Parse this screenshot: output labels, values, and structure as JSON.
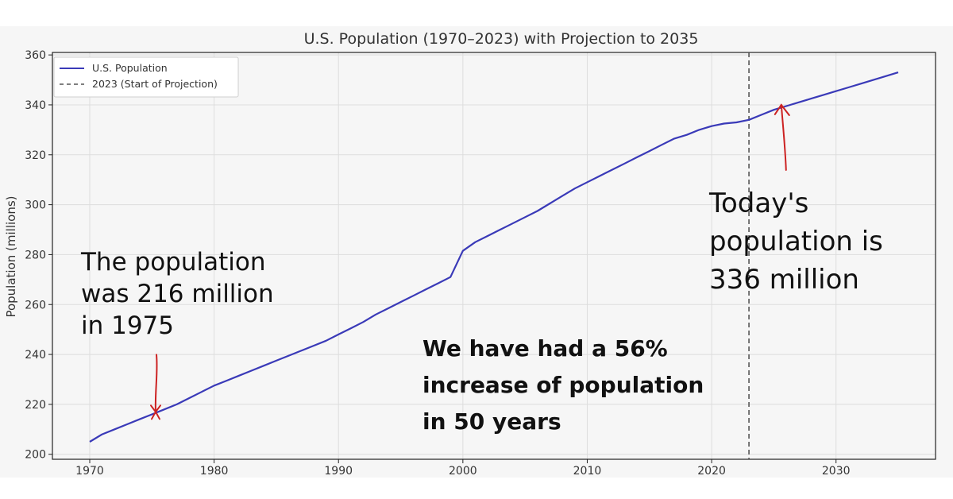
{
  "chart_data": {
    "type": "line",
    "title": "U.S. Population (1970–2023) with Projection to 2035",
    "xlabel": "",
    "ylabel": "Population (millions)",
    "xlim": [
      1967,
      2038
    ],
    "ylim": [
      198,
      361
    ],
    "xticks": [
      1970,
      1980,
      1990,
      2000,
      2010,
      2020,
      2030
    ],
    "yticks": [
      200,
      220,
      240,
      260,
      280,
      300,
      320,
      340,
      360
    ],
    "grid": true,
    "legend": {
      "placement": "top-left",
      "entries": [
        {
          "label": "U.S. Population",
          "style": "solid",
          "color": "#3a3ab8"
        },
        {
          "label": "2023 (Start of Projection)",
          "style": "dashed",
          "color": "#555555"
        }
      ]
    },
    "series": [
      {
        "name": "U.S. Population",
        "color": "#3a3ab8",
        "x": [
          1970,
          1971,
          1972,
          1973,
          1974,
          1975,
          1976,
          1977,
          1978,
          1979,
          1980,
          1981,
          1982,
          1983,
          1984,
          1985,
          1986,
          1987,
          1988,
          1989,
          1990,
          1991,
          1992,
          1993,
          1994,
          1995,
          1996,
          1997,
          1998,
          1999,
          2000,
          2001,
          2002,
          2003,
          2004,
          2005,
          2006,
          2007,
          2008,
          2009,
          2010,
          2011,
          2012,
          2013,
          2014,
          2015,
          2016,
          2017,
          2018,
          2019,
          2020,
          2021,
          2022,
          2023,
          2024,
          2025,
          2026,
          2027,
          2028,
          2029,
          2030,
          2031,
          2032,
          2033,
          2034,
          2035
        ],
        "y": [
          205,
          208,
          210,
          212,
          214,
          216,
          218,
          220,
          222.5,
          225,
          227.5,
          229.5,
          231.5,
          233.5,
          235.5,
          237.5,
          239.5,
          241.5,
          243.5,
          245.5,
          248,
          250.5,
          253,
          256,
          258.5,
          261,
          263.5,
          266,
          268.5,
          271,
          281.5,
          285,
          287.5,
          290,
          292.5,
          295,
          297.5,
          300.5,
          303.5,
          306.5,
          309,
          311.5,
          314,
          316.5,
          319,
          321.5,
          324,
          326.5,
          328,
          330,
          331.5,
          332.5,
          333,
          334,
          336,
          338,
          339.5,
          341,
          342.5,
          344,
          345.5,
          347,
          348.5,
          350,
          351.5,
          353
        ]
      }
    ],
    "vline": {
      "x": 2023,
      "label": "2023 (Start of Projection)",
      "style": "dashed"
    },
    "annotations": [
      {
        "text": [
          "The population",
          "was 216 million",
          "in 1975"
        ],
        "arrow_to": {
          "x": 1975.3,
          "y": 217
        }
      },
      {
        "text": [
          "Today's",
          "population is",
          "336 million"
        ],
        "arrow_to": {
          "x": 2025.6,
          "y": 340
        }
      },
      {
        "text": [
          "We have had a 56%",
          "increase of population",
          "in 50 years"
        ]
      }
    ]
  },
  "colors": {
    "line": "#3a3ab8",
    "annotation_arrow": "#cc2222",
    "plot_background": "#f6f6f6",
    "grid": "#dddddd",
    "axis": "#222222"
  }
}
